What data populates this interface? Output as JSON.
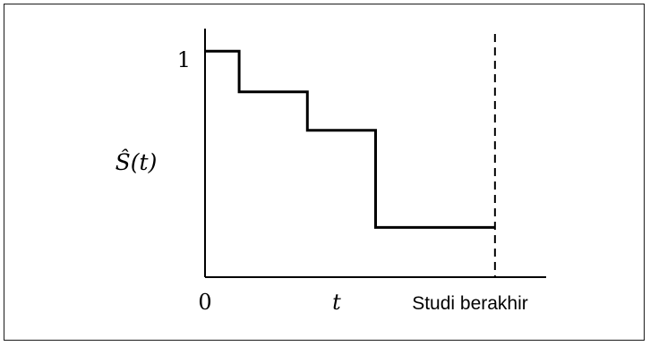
{
  "chart_data": {
    "type": "line",
    "step": true,
    "ylabel": "Ŝ(t)",
    "xlabel": "t",
    "x_origin_label": "0",
    "y_tick_label": "1",
    "end_label": "Studi berakhir",
    "x": [
      0,
      1,
      3,
      5,
      8.5
    ],
    "y": [
      1.0,
      0.82,
      0.65,
      0.22,
      0.22
    ],
    "study_end_x": 8.5,
    "xlim": [
      0,
      10
    ],
    "ylim": [
      0,
      1.1
    ],
    "grid": false,
    "colors": {
      "line": "#000000",
      "axis": "#000000"
    }
  }
}
